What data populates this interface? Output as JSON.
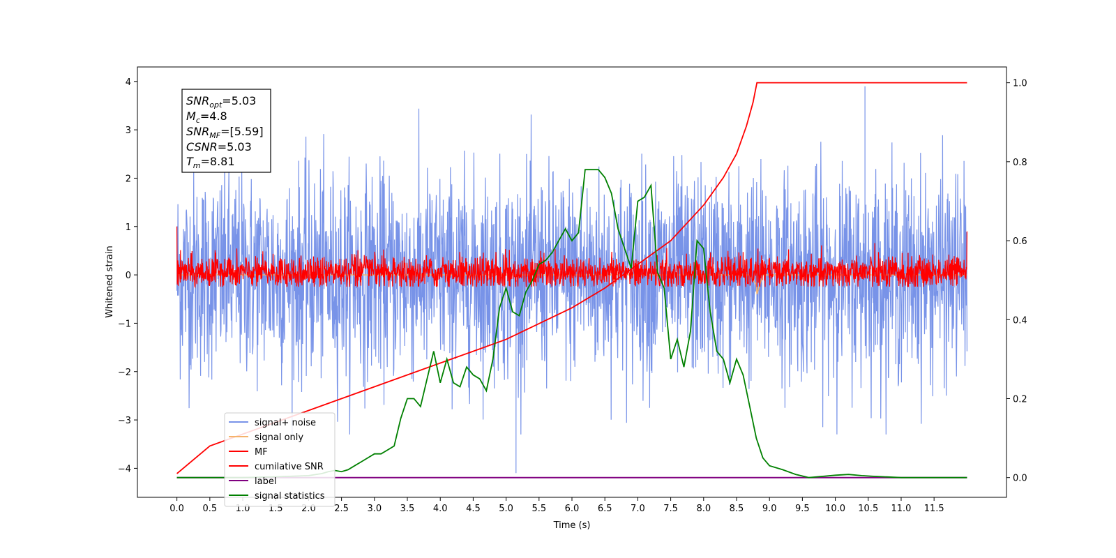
{
  "chart_data": {
    "type": "line",
    "xlabel": "Time (s)",
    "ylabel": "Whitened strain",
    "xlim": [
      -0.6,
      12.6
    ],
    "ylim_left": [
      -4.6,
      4.3
    ],
    "ylim_right": [
      -0.05,
      1.04
    ],
    "x_ticks": [
      "0.0",
      "0.5",
      "1.0",
      "1.5",
      "2.0",
      "2.5",
      "3.0",
      "3.5",
      "4.0",
      "4.5",
      "5.0",
      "5.5",
      "6.0",
      "6.5",
      "7.0",
      "7.5",
      "8.0",
      "8.5",
      "9.0",
      "9.5",
      "10.0",
      "10.5",
      "11.0",
      "11.5"
    ],
    "y_ticks_left": [
      "4",
      "3",
      "2",
      "1",
      "0",
      "−1",
      "−2",
      "−3",
      "−4"
    ],
    "y_ticks_right": [
      "1.0",
      "0.8",
      "0.6",
      "0.4",
      "0.2",
      "0.0"
    ],
    "grid": false,
    "legend_position": "lower-left",
    "annotation": {
      "snr_opt": "=5.03",
      "mc": "=4.8",
      "snr_mf": "=[5.59]",
      "csnr": "=5.03",
      "tm": "=8.81"
    },
    "series": [
      {
        "name": "signal+ noise",
        "axis": "left",
        "color": "#7893e8",
        "description_values": {
          "x_range": [
            0.0,
            12.0
          ],
          "envelope": [
            -2.5,
            2.8
          ],
          "max": 3.9,
          "min": -4.1,
          "spike_times": [
            5.15,
            10.45
          ]
        }
      },
      {
        "name": "signal only",
        "axis": "left",
        "color": "#f5b36b",
        "x": [
          0.0,
          8.7,
          8.8,
          8.81,
          8.9,
          12.0
        ],
        "y": [
          0.0,
          0.0,
          -0.2,
          -0.4,
          0.0,
          0.0
        ]
      },
      {
        "name": "MF",
        "axis": "left",
        "color": "#ff0000",
        "description_values": {
          "x_range": [
            0.0,
            12.0
          ],
          "envelope": [
            -0.25,
            0.45
          ],
          "max": 1.0,
          "min": -0.25
        }
      },
      {
        "name": "cumilative SNR",
        "axis": "right",
        "color": "#ff0000",
        "x": [
          0.0,
          0.5,
          1.0,
          1.5,
          2.0,
          2.5,
          3.0,
          3.5,
          4.0,
          4.5,
          5.0,
          5.5,
          6.0,
          6.5,
          7.0,
          7.5,
          8.0,
          8.3,
          8.5,
          8.65,
          8.75,
          8.81,
          12.0
        ],
        "y": [
          0.01,
          0.08,
          0.11,
          0.14,
          0.17,
          0.2,
          0.23,
          0.26,
          0.29,
          0.32,
          0.35,
          0.39,
          0.43,
          0.48,
          0.54,
          0.6,
          0.69,
          0.76,
          0.82,
          0.89,
          0.95,
          1.0,
          1.0
        ]
      },
      {
        "name": "label",
        "axis": "right",
        "color": "#800080",
        "x": [
          0.0,
          12.0
        ],
        "y": [
          0.0,
          0.0
        ]
      },
      {
        "name": "signal statistics",
        "axis": "right",
        "color": "#008000",
        "x": [
          0.0,
          0.5,
          1.0,
          1.5,
          2.0,
          2.2,
          2.3,
          2.4,
          2.5,
          2.6,
          2.7,
          2.8,
          2.9,
          3.0,
          3.1,
          3.2,
          3.3,
          3.4,
          3.5,
          3.6,
          3.7,
          3.8,
          3.9,
          4.0,
          4.1,
          4.2,
          4.3,
          4.4,
          4.5,
          4.6,
          4.7,
          4.8,
          4.9,
          5.0,
          5.1,
          5.2,
          5.3,
          5.4,
          5.5,
          5.6,
          5.7,
          5.8,
          5.9,
          6.0,
          6.1,
          6.2,
          6.3,
          6.4,
          6.5,
          6.6,
          6.7,
          6.8,
          6.9,
          7.0,
          7.1,
          7.2,
          7.3,
          7.4,
          7.5,
          7.6,
          7.7,
          7.8,
          7.9,
          8.0,
          8.1,
          8.2,
          8.3,
          8.4,
          8.5,
          8.6,
          8.7,
          8.8,
          8.9,
          9.0,
          9.2,
          9.4,
          9.6,
          9.8,
          10.0,
          10.2,
          10.4,
          10.6,
          11.0,
          11.5,
          12.0
        ],
        "y": [
          0.0,
          0.0,
          0.0,
          0.002,
          0.005,
          0.01,
          0.015,
          0.018,
          0.015,
          0.02,
          0.03,
          0.04,
          0.05,
          0.06,
          0.06,
          0.07,
          0.08,
          0.15,
          0.2,
          0.2,
          0.18,
          0.25,
          0.32,
          0.24,
          0.3,
          0.24,
          0.23,
          0.28,
          0.26,
          0.25,
          0.22,
          0.3,
          0.43,
          0.48,
          0.42,
          0.41,
          0.47,
          0.5,
          0.54,
          0.55,
          0.57,
          0.6,
          0.63,
          0.6,
          0.62,
          0.78,
          0.78,
          0.78,
          0.76,
          0.72,
          0.63,
          0.58,
          0.53,
          0.7,
          0.71,
          0.74,
          0.52,
          0.48,
          0.3,
          0.35,
          0.28,
          0.37,
          0.6,
          0.58,
          0.42,
          0.32,
          0.3,
          0.24,
          0.3,
          0.26,
          0.18,
          0.1,
          0.05,
          0.03,
          0.02,
          0.008,
          0.0,
          0.003,
          0.006,
          0.008,
          0.005,
          0.003,
          0.0,
          0.0,
          0.0
        ]
      }
    ]
  }
}
